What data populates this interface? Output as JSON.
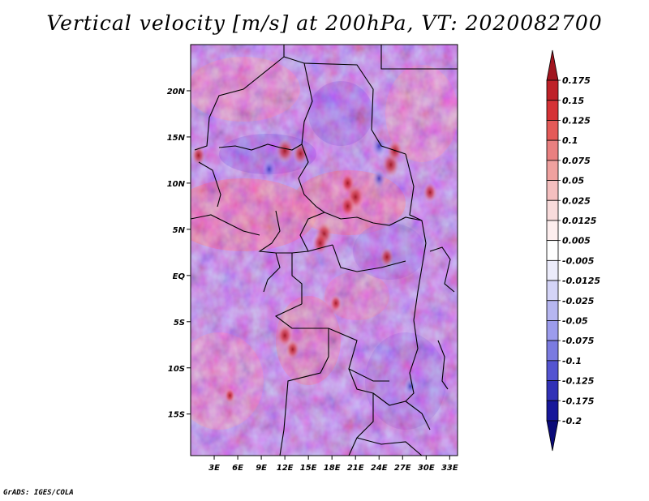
{
  "chart_data": {
    "type": "heatmap",
    "title": "Vertical velocity [m/s] at 200hPa, VT: 2020082700",
    "field": "vertical velocity",
    "units": "m/s",
    "level": "200hPa",
    "valid_time": "2020082700",
    "x_axis": {
      "labels": [
        "3E",
        "6E",
        "9E",
        "12E",
        "15E",
        "18E",
        "21E",
        "24E",
        "27E",
        "30E",
        "33E"
      ],
      "values": [
        3,
        6,
        9,
        12,
        15,
        18,
        21,
        24,
        27,
        30,
        33
      ],
      "range": [
        0,
        34
      ]
    },
    "y_axis": {
      "labels": [
        "20N",
        "15N",
        "10N",
        "5N",
        "EQ",
        "5S",
        "10S",
        "15S"
      ],
      "values": [
        20,
        15,
        10,
        5,
        0,
        -5,
        -10,
        -15
      ],
      "range": [
        -19.5,
        25
      ]
    },
    "colorbar": {
      "levels": [
        "0.175",
        "0.15",
        "0.125",
        "0.1",
        "0.075",
        "0.05",
        "0.025",
        "0.0125",
        "0.005",
        "-0.005",
        "-0.0125",
        "-0.025",
        "-0.05",
        "-0.075",
        "-0.1",
        "-0.125",
        "-0.175",
        "-0.2"
      ],
      "colors": [
        "#a0141e",
        "#be2128",
        "#d53236",
        "#e45a58",
        "#e98080",
        "#efa19f",
        "#f4bfbf",
        "#f8dbdb",
        "#fdeeee",
        "#ffffff",
        "#ececfb",
        "#d4d4f7",
        "#b6b6f0",
        "#9c9ced",
        "#7b7be0",
        "#5454d1",
        "#3131b6",
        "#17179a",
        "#0a0a78"
      ]
    },
    "hotspots": [
      {
        "lon": 12,
        "lat": 13.5,
        "value": 0.15
      },
      {
        "lon": 14,
        "lat": 13.2,
        "value": 0.125
      },
      {
        "lon": 20,
        "lat": 10,
        "value": 0.1
      },
      {
        "lon": 21,
        "lat": 8.5,
        "value": 0.15
      },
      {
        "lon": 20,
        "lat": 7.5,
        "value": 0.125
      },
      {
        "lon": 17,
        "lat": 4.5,
        "value": 0.15
      },
      {
        "lon": 16.5,
        "lat": 3.5,
        "value": 0.125
      },
      {
        "lon": 25.5,
        "lat": 12,
        "value": 0.15
      },
      {
        "lon": 26,
        "lat": 13.5,
        "value": 0.125
      },
      {
        "lon": 25,
        "lat": 2,
        "value": 0.1
      },
      {
        "lon": 12,
        "lat": -6.5,
        "value": 0.125
      },
      {
        "lon": 13,
        "lat": -8,
        "value": 0.1
      },
      {
        "lon": 18.5,
        "lat": -3,
        "value": 0.075
      },
      {
        "lon": 30.5,
        "lat": 9,
        "value": 0.1
      },
      {
        "lon": 1,
        "lat": 13,
        "value": 0.1
      },
      {
        "lon": 24,
        "lat": 14,
        "value": -0.125
      },
      {
        "lon": 10,
        "lat": 11.5,
        "value": -0.1
      },
      {
        "lon": 24,
        "lat": 10.5,
        "value": -0.1
      },
      {
        "lon": 5,
        "lat": -13,
        "value": 0.05
      },
      {
        "lon": 28,
        "lat": -12,
        "value": -0.075
      }
    ]
  },
  "footer": "GrADS: IGES/COLA"
}
